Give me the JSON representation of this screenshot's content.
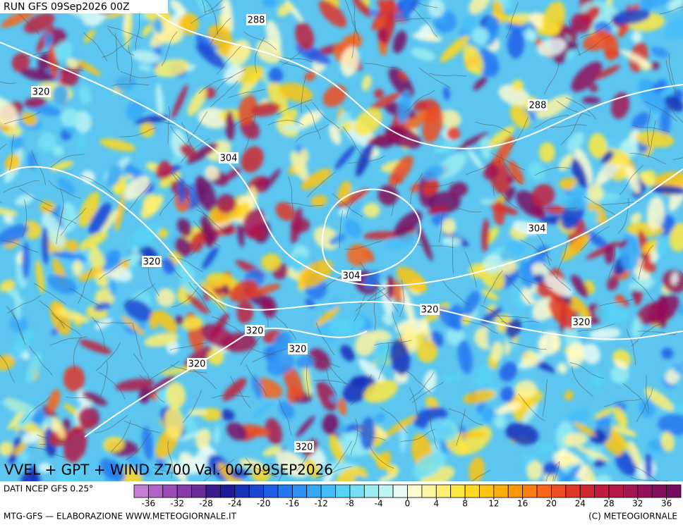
{
  "header": {
    "run": "RUN GFS 09Sep2026 00Z",
    "title": "VVEL + GPT + WIND Z700 Val. 00Z09SEP2026"
  },
  "contour_labels": [
    "288",
    "320",
    "304",
    "288",
    "320",
    "304",
    "304",
    "320",
    "320",
    "320",
    "320",
    "320",
    "320"
  ],
  "colorbar": {
    "lim": [
      -38,
      38
    ],
    "ticks": [
      -36,
      -32,
      -28,
      -24,
      -20,
      -16,
      -12,
      -8,
      -4,
      0,
      4,
      8,
      12,
      16,
      20,
      24,
      28,
      32,
      36
    ],
    "tick_labels": [
      "-36",
      "-32",
      "-28",
      "-24",
      "-20",
      "-16",
      "-12",
      "-8",
      "-4",
      "0",
      "4",
      "8",
      "12",
      "16",
      "20",
      "24",
      "28",
      "32",
      "36"
    ],
    "colors": [
      "#c47ed6",
      "#b064c8",
      "#9c4cb8",
      "#883aa8",
      "#6a2c98",
      "#3a1c8c",
      "#1a1a9a",
      "#1630b8",
      "#1a46d2",
      "#1e5ee6",
      "#2478f0",
      "#2c90f6",
      "#36a8f8",
      "#44bef8",
      "#56d2f6",
      "#74e0f4",
      "#98ecf2",
      "#bef4f2",
      "#e6fbf6",
      "#fffbd0",
      "#fff5a0",
      "#fff070",
      "#ffe840",
      "#ffd820",
      "#ffc410",
      "#ffae08",
      "#ff9608",
      "#ff7e10",
      "#f8641a",
      "#ee4c22",
      "#e03628",
      "#d0262e",
      "#c21c3c",
      "#b21848",
      "#a31452",
      "#94105a",
      "#860c5e",
      "#780a60"
    ]
  },
  "footer": {
    "source": "DATI NCEP GFS 0.25°",
    "credits": "MTG-GFS — ELABORAZIONE WWW.METEOGIORNALE.IT",
    "copyright": "(C) METEOGIORNALE"
  }
}
